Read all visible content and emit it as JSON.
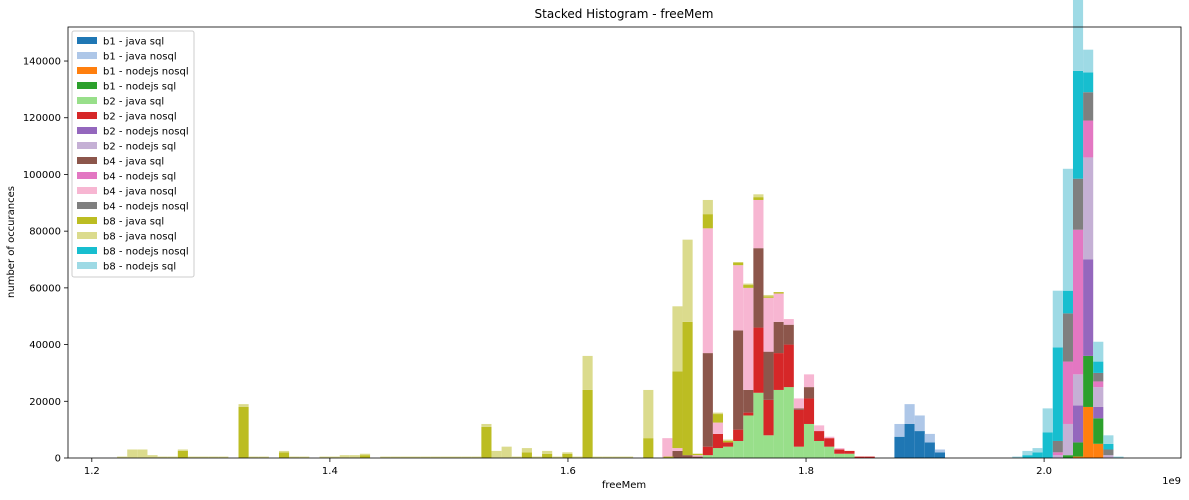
{
  "chart_data": {
    "type": "bar",
    "stacked": true,
    "title": "Stacked Histogram - freeMem",
    "xlabel": "freeMem",
    "ylabel": "number of occurances",
    "x_offset_label": "1e9",
    "xlim": [
      1.18,
      2.115
    ],
    "ylim": [
      0,
      152000
    ],
    "bin_width": 0.0085,
    "xticks": [
      {
        "value": 1.2,
        "label": "1.2"
      },
      {
        "value": 1.4,
        "label": "1.4"
      },
      {
        "value": 1.6,
        "label": "1.6"
      },
      {
        "value": 1.8,
        "label": "1.8"
      },
      {
        "value": 2.0,
        "label": "2.0"
      }
    ],
    "yticks": [
      {
        "value": 0,
        "label": "0"
      },
      {
        "value": 20000,
        "label": "20000"
      },
      {
        "value": 40000,
        "label": "40000"
      },
      {
        "value": 60000,
        "label": "60000"
      },
      {
        "value": 80000,
        "label": "80000"
      },
      {
        "value": 100000,
        "label": "100000"
      },
      {
        "value": 120000,
        "label": "120000"
      },
      {
        "value": 140000,
        "label": "140000"
      }
    ],
    "legend_position": "top-left",
    "series": [
      {
        "name": "b1 - java sql",
        "color": "#1f77b4",
        "points": [
          [
            1.8785,
            7500
          ],
          [
            1.887,
            12000
          ],
          [
            1.8955,
            9500
          ],
          [
            1.904,
            5500
          ],
          [
            1.9125,
            2000
          ]
        ]
      },
      {
        "name": "b1 - java nosql",
        "color": "#aec7e8",
        "points": [
          [
            1.8785,
            4500
          ],
          [
            1.887,
            7000
          ],
          [
            1.8955,
            5500
          ],
          [
            1.904,
            3000
          ],
          [
            1.9125,
            1000
          ]
        ]
      },
      {
        "name": "b1 - nodejs nosql",
        "color": "#ff7f0e",
        "points": [
          [
            2.0285,
            500
          ],
          [
            2.037,
            18000
          ],
          [
            2.0455,
            5000
          ]
        ]
      },
      {
        "name": "b1 - nodejs sql",
        "color": "#2ca02c",
        "points": [
          [
            2.02,
            1000
          ],
          [
            2.0285,
            5000
          ],
          [
            2.037,
            18000
          ],
          [
            2.0455,
            9000
          ]
        ]
      },
      {
        "name": "b2 - java sql",
        "color": "#98df8a",
        "points": [
          [
            1.7175,
            1000
          ],
          [
            1.726,
            3500
          ],
          [
            1.7345,
            4000
          ],
          [
            1.743,
            6000
          ],
          [
            1.7515,
            15000
          ],
          [
            1.76,
            23000
          ],
          [
            1.7685,
            8000
          ],
          [
            1.777,
            24000
          ],
          [
            1.7855,
            25000
          ],
          [
            1.794,
            4000
          ],
          [
            1.8025,
            12000
          ],
          [
            1.811,
            6000
          ],
          [
            1.8195,
            4000
          ],
          [
            1.828,
            1500
          ],
          [
            1.8365,
            1500
          ]
        ]
      },
      {
        "name": "b2 - java nosql",
        "color": "#d62728",
        "points": [
          [
            1.7175,
            3000
          ],
          [
            1.726,
            5000
          ],
          [
            1.7345,
            1500
          ],
          [
            1.743,
            4000
          ],
          [
            1.7515,
            1000
          ],
          [
            1.76,
            23000
          ],
          [
            1.7685,
            12500
          ],
          [
            1.777,
            13000
          ],
          [
            1.7855,
            15000
          ],
          [
            1.794,
            13000
          ],
          [
            1.8025,
            9000
          ],
          [
            1.811,
            3500
          ],
          [
            1.8195,
            3000
          ],
          [
            1.828,
            1500
          ],
          [
            1.8365,
            1000
          ],
          [
            1.845,
            500
          ],
          [
            1.8535,
            500
          ]
        ]
      },
      {
        "name": "b2 - nodejs nosql",
        "color": "#9467bd",
        "points": [
          [
            2.0285,
            13000
          ],
          [
            2.037,
            34000
          ],
          [
            2.0455,
            4000
          ]
        ]
      },
      {
        "name": "b2 - nodejs sql",
        "color": "#c5b0d5",
        "points": [
          [
            2.0115,
            1000
          ],
          [
            2.02,
            11000
          ],
          [
            2.0285,
            11000
          ],
          [
            2.037,
            36000
          ],
          [
            2.0455,
            7000
          ],
          [
            2.054,
            1000
          ]
        ]
      },
      {
        "name": "b4 - java sql",
        "color": "#8c564b",
        "points": [
          [
            1.692,
            2500
          ],
          [
            1.7005,
            1000
          ],
          [
            1.709,
            500
          ],
          [
            1.7175,
            33000
          ],
          [
            1.743,
            35000
          ],
          [
            1.7515,
            8000
          ],
          [
            1.76,
            28000
          ],
          [
            1.7685,
            17000
          ],
          [
            1.777,
            11000
          ],
          [
            1.7855,
            7000
          ],
          [
            1.794,
            500
          ],
          [
            1.8025,
            4000
          ]
        ]
      },
      {
        "name": "b4 - nodejs sql",
        "color": "#e377c2",
        "points": [
          [
            2.0115,
            1000
          ],
          [
            2.02,
            22000
          ],
          [
            2.0285,
            51000
          ],
          [
            2.037,
            13000
          ],
          [
            2.0455,
            2000
          ]
        ]
      },
      {
        "name": "b4 - java nosql",
        "color": "#f7b6d2",
        "points": [
          [
            1.6835,
            7000
          ],
          [
            1.692,
            1000
          ],
          [
            1.709,
            500
          ],
          [
            1.7175,
            44000
          ],
          [
            1.726,
            4000
          ],
          [
            1.743,
            23000
          ],
          [
            1.7515,
            36000
          ],
          [
            1.76,
            17000
          ],
          [
            1.7685,
            19000
          ],
          [
            1.777,
            10000
          ],
          [
            1.7855,
            2000
          ],
          [
            1.794,
            3500
          ],
          [
            1.8025,
            4500
          ],
          [
            1.811,
            2000
          ],
          [
            1.8195,
            500
          ],
          [
            1.828,
            500
          ]
        ]
      },
      {
        "name": "b4 - nodejs nosql",
        "color": "#7f7f7f",
        "points": [
          [
            2.0115,
            4000
          ],
          [
            2.02,
            17000
          ],
          [
            2.0285,
            18000
          ],
          [
            2.037,
            10000
          ],
          [
            2.0455,
            3000
          ],
          [
            2.054,
            2000
          ]
        ]
      },
      {
        "name": "b8 - java sql",
        "color": "#bcbd22",
        "points": [
          [
            1.2765,
            2500
          ],
          [
            1.3275,
            18000
          ],
          [
            1.3615,
            2000
          ],
          [
            1.4295,
            1000
          ],
          [
            1.5315,
            11000
          ],
          [
            1.5655,
            2000
          ],
          [
            1.5825,
            1500
          ],
          [
            1.5995,
            1500
          ],
          [
            1.6165,
            24000
          ],
          [
            1.6675,
            7000
          ],
          [
            1.6845,
            500
          ],
          [
            1.692,
            27000
          ],
          [
            1.7005,
            47000
          ],
          [
            1.709,
            500
          ],
          [
            1.7175,
            5000
          ],
          [
            1.726,
            3000
          ],
          [
            1.7345,
            500
          ],
          [
            1.743,
            1000
          ],
          [
            1.7515,
            1000
          ],
          [
            1.76,
            1000
          ],
          [
            1.7685,
            500
          ],
          [
            1.777,
            500
          ]
        ]
      },
      {
        "name": "b8 - java nosql",
        "color": "#dbdb8d",
        "points": [
          [
            1.2255,
            500
          ],
          [
            1.234,
            3000
          ],
          [
            1.2425,
            3000
          ],
          [
            1.251,
            1000
          ],
          [
            1.2595,
            500
          ],
          [
            1.268,
            500
          ],
          [
            1.2765,
            500
          ],
          [
            1.285,
            500
          ],
          [
            1.2935,
            500
          ],
          [
            1.302,
            500
          ],
          [
            1.3105,
            500
          ],
          [
            1.3275,
            1000
          ],
          [
            1.336,
            500
          ],
          [
            1.3445,
            500
          ],
          [
            1.3615,
            500
          ],
          [
            1.37,
            500
          ],
          [
            1.3785,
            500
          ],
          [
            1.3955,
            500
          ],
          [
            1.404,
            500
          ],
          [
            1.4125,
            1000
          ],
          [
            1.421,
            1000
          ],
          [
            1.4295,
            500
          ],
          [
            1.4465,
            500
          ],
          [
            1.455,
            500
          ],
          [
            1.4635,
            500
          ],
          [
            1.472,
            500
          ],
          [
            1.4805,
            500
          ],
          [
            1.489,
            500
          ],
          [
            1.4975,
            500
          ],
          [
            1.506,
            500
          ],
          [
            1.5145,
            500
          ],
          [
            1.523,
            500
          ],
          [
            1.5315,
            1000
          ],
          [
            1.54,
            2500
          ],
          [
            1.5485,
            4000
          ],
          [
            1.557,
            500
          ],
          [
            1.5655,
            1500
          ],
          [
            1.574,
            500
          ],
          [
            1.5825,
            1000
          ],
          [
            1.591,
            500
          ],
          [
            1.5995,
            500
          ],
          [
            1.608,
            500
          ],
          [
            1.6165,
            12000
          ],
          [
            1.625,
            500
          ],
          [
            1.6335,
            500
          ],
          [
            1.642,
            500
          ],
          [
            1.6505,
            500
          ],
          [
            1.6675,
            17000
          ],
          [
            1.692,
            23000
          ],
          [
            1.7005,
            29000
          ],
          [
            1.7175,
            5000
          ],
          [
            1.726,
            500
          ],
          [
            1.7345,
            500
          ],
          [
            1.7515,
            500
          ],
          [
            1.76,
            1000
          ],
          [
            1.7685,
            500
          ]
        ]
      },
      {
        "name": "b8 - nodejs nosql",
        "color": "#17becf",
        "points": [
          [
            1.986,
            1000
          ],
          [
            1.9945,
            2000
          ],
          [
            2.003,
            9000
          ],
          [
            2.0115,
            33000
          ],
          [
            2.02,
            8000
          ],
          [
            2.0285,
            38000
          ],
          [
            2.037,
            7000
          ],
          [
            2.0455,
            4000
          ],
          [
            2.054,
            2000
          ]
        ]
      },
      {
        "name": "b8 - nodejs sql",
        "color": "#9edae5",
        "points": [
          [
            1.9775,
            500
          ],
          [
            1.986,
            1500
          ],
          [
            1.9945,
            1500
          ],
          [
            2.003,
            8500
          ],
          [
            2.0115,
            20000
          ],
          [
            2.02,
            43000
          ],
          [
            2.0285,
            40000
          ],
          [
            2.037,
            8000
          ],
          [
            2.0455,
            7000
          ],
          [
            2.054,
            3000
          ],
          [
            2.0625,
            500
          ]
        ]
      }
    ]
  }
}
